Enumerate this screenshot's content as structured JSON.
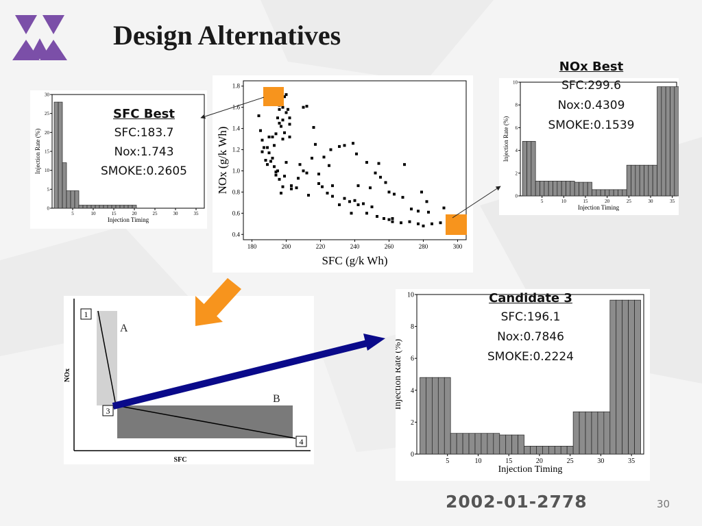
{
  "slide": {
    "title": "Design Alternatives",
    "footer_id": "2002-01-2778",
    "page_number": "30",
    "logo_color": "#7b4fa8",
    "accent_orange": "#f7941d",
    "arrow_navy": "#0a0a8a"
  },
  "sfc_best": {
    "heading": "SFC Best",
    "sfc": "SFC:183.7",
    "nox": "Nox:1.743",
    "smoke": "SMOKE:0.2605"
  },
  "nox_best": {
    "heading": "NOx Best",
    "sfc": "SFC:299.6",
    "nox": "Nox:0.4309",
    "smoke": "SMOKE:0.1539"
  },
  "candidate3": {
    "heading": "Candidate 3",
    "sfc": "SFC:196.1",
    "nox": "Nox:0.7846",
    "smoke": "SMOKE:0.2224"
  },
  "chart_data": [
    {
      "type": "bar",
      "name": "sfc-best-injection",
      "xlabel": "Injection Timing",
      "ylabel": "Injection Rate (%)",
      "xlim": [
        0,
        37
      ],
      "ylim": [
        0,
        30
      ],
      "xticks": [
        5,
        10,
        15,
        20,
        25,
        30,
        35
      ],
      "yticks": [
        0,
        5,
        10,
        15,
        20,
        25,
        30
      ],
      "values": [
        28,
        28,
        12,
        4.6,
        4.6,
        4.6,
        0.8,
        0.8,
        0.8,
        0.8,
        0.8,
        0.8,
        0.8,
        0.8,
        0.8,
        0.8,
        0.8,
        0.8,
        0.8,
        0.8
      ]
    },
    {
      "type": "scatter",
      "name": "pareto-front",
      "xlabel": "SFC (g/k Wh)",
      "ylabel": "NOx (g/k Wh)",
      "xlim": [
        175,
        305
      ],
      "ylim": [
        0.35,
        1.85
      ],
      "xticks": [
        180,
        200,
        220,
        240,
        260,
        280,
        300
      ],
      "yticks": [
        0.4,
        0.6,
        0.8,
        1.0,
        1.2,
        1.4,
        1.6,
        1.8
      ],
      "points": [
        [
          184,
          1.52
        ],
        [
          185,
          1.38
        ],
        [
          186,
          1.29
        ],
        [
          186,
          1.18
        ],
        [
          187,
          1.22
        ],
        [
          188,
          1.1
        ],
        [
          189,
          1.06
        ],
        [
          190,
          1.17
        ],
        [
          191,
          1.09
        ],
        [
          192,
          1.12
        ],
        [
          193,
          1.04
        ],
        [
          194,
          0.96
        ],
        [
          195,
          1.0
        ],
        [
          196,
          0.92
        ],
        [
          197,
          0.79
        ],
        [
          198,
          0.85
        ],
        [
          199,
          0.95
        ],
        [
          200,
          1.08
        ],
        [
          203,
          0.83
        ],
        [
          206,
          0.84
        ],
        [
          213,
          0.77
        ],
        [
          210,
          1.0
        ],
        [
          208,
          1.06
        ],
        [
          215,
          1.12
        ],
        [
          217,
          1.25
        ],
        [
          219,
          0.88
        ],
        [
          221,
          0.85
        ],
        [
          224,
          0.79
        ],
        [
          227,
          0.76
        ],
        [
          231,
          0.68
        ],
        [
          234,
          0.74
        ],
        [
          237,
          0.71
        ],
        [
          240,
          0.72
        ],
        [
          242,
          0.68
        ],
        [
          245,
          0.69
        ],
        [
          247,
          0.6
        ],
        [
          250,
          0.66
        ],
        [
          253,
          0.57
        ],
        [
          257,
          0.55
        ],
        [
          260,
          0.54
        ],
        [
          262,
          0.52
        ],
        [
          267,
          0.51
        ],
        [
          272,
          0.52
        ],
        [
          277,
          0.5
        ],
        [
          280,
          0.48
        ],
        [
          285,
          0.5
        ],
        [
          290,
          0.51
        ],
        [
          292,
          0.65
        ],
        [
          282,
          0.71
        ],
        [
          277,
          0.62
        ],
        [
          273,
          0.64
        ],
        [
          268,
          0.75
        ],
        [
          263,
          0.78
        ],
        [
          258,
          0.89
        ],
        [
          255,
          0.94
        ],
        [
          252,
          0.98
        ],
        [
          247,
          1.08
        ],
        [
          241,
          1.16
        ],
        [
          234,
          1.24
        ],
        [
          226,
          1.2
        ],
        [
          222,
          1.13
        ],
        [
          225,
          1.05
        ],
        [
          212,
          1.61
        ],
        [
          210,
          1.6
        ],
        [
          196,
          1.62
        ],
        [
          197,
          1.66
        ],
        [
          199,
          1.7
        ],
        [
          200,
          1.72
        ],
        [
          198,
          1.6
        ],
        [
          196,
          1.58
        ],
        [
          195,
          1.5
        ],
        [
          196,
          1.45
        ],
        [
          197,
          1.42
        ],
        [
          198,
          1.48
        ],
        [
          200,
          1.55
        ],
        [
          201,
          1.58
        ],
        [
          202,
          1.5
        ],
        [
          202,
          1.44
        ],
        [
          199,
          1.36
        ],
        [
          198,
          1.3
        ],
        [
          194,
          1.35
        ],
        [
          192,
          1.32
        ],
        [
          193,
          1.24
        ],
        [
          190,
          1.32
        ],
        [
          202,
          1.32
        ],
        [
          216,
          1.41
        ],
        [
          231,
          1.23
        ],
        [
          239,
          1.26
        ],
        [
          254,
          1.07
        ],
        [
          269,
          1.06
        ],
        [
          279,
          0.8
        ],
        [
          283,
          0.61
        ],
        [
          262,
          0.55
        ],
        [
          260,
          0.8
        ],
        [
          249,
          0.84
        ],
        [
          242,
          0.86
        ],
        [
          238,
          0.6
        ],
        [
          227,
          0.86
        ],
        [
          219,
          0.97
        ],
        [
          212,
          0.98
        ],
        [
          207,
          0.93
        ],
        [
          203,
          0.86
        ],
        [
          194,
          0.99
        ],
        [
          189,
          1.22
        ]
      ]
    },
    {
      "type": "bar",
      "name": "nox-best-injection",
      "xlabel": "Injection Timing",
      "ylabel": "Injection Rate (%)",
      "xlim": [
        0,
        36
      ],
      "ylim": [
        0,
        10
      ],
      "xticks": [
        5,
        10,
        15,
        20,
        25,
        30,
        35
      ],
      "yticks": [
        0,
        2,
        4,
        6,
        8,
        10
      ],
      "values": [
        4.8,
        4.8,
        4.8,
        1.3,
        1.3,
        1.3,
        1.3,
        1.3,
        1.3,
        1.3,
        1.3,
        1.3,
        1.2,
        1.2,
        1.2,
        1.2,
        0.55,
        0.55,
        0.55,
        0.55,
        0.55,
        0.55,
        0.55,
        0.55,
        2.7,
        2.7,
        2.7,
        2.7,
        2.7,
        2.7,
        2.7,
        9.6,
        9.6,
        9.6,
        9.6,
        9.6
      ]
    },
    {
      "type": "bar",
      "name": "candidate-3-injection",
      "xlabel": "Injection Timing",
      "ylabel": "Injection Rate (%)",
      "xlim": [
        0,
        37
      ],
      "ylim": [
        0,
        10
      ],
      "xticks": [
        5,
        10,
        15,
        20,
        25,
        30,
        35
      ],
      "yticks": [
        0,
        2,
        4,
        6,
        8,
        10
      ],
      "values": [
        4.8,
        4.8,
        4.8,
        4.8,
        4.8,
        1.3,
        1.3,
        1.3,
        1.3,
        1.3,
        1.3,
        1.3,
        1.3,
        1.2,
        1.2,
        1.2,
        1.2,
        0.5,
        0.5,
        0.5,
        0.5,
        0.5,
        0.5,
        0.5,
        0.5,
        2.65,
        2.65,
        2.65,
        2.65,
        2.65,
        2.65,
        9.65,
        9.65,
        9.65,
        9.65,
        9.65
      ]
    }
  ],
  "tradeoff_diagram": {
    "ylabel": "NOx",
    "xlabel": "SFC",
    "region_a": "A",
    "region_b": "B",
    "points": [
      "1",
      "3",
      "4"
    ]
  }
}
